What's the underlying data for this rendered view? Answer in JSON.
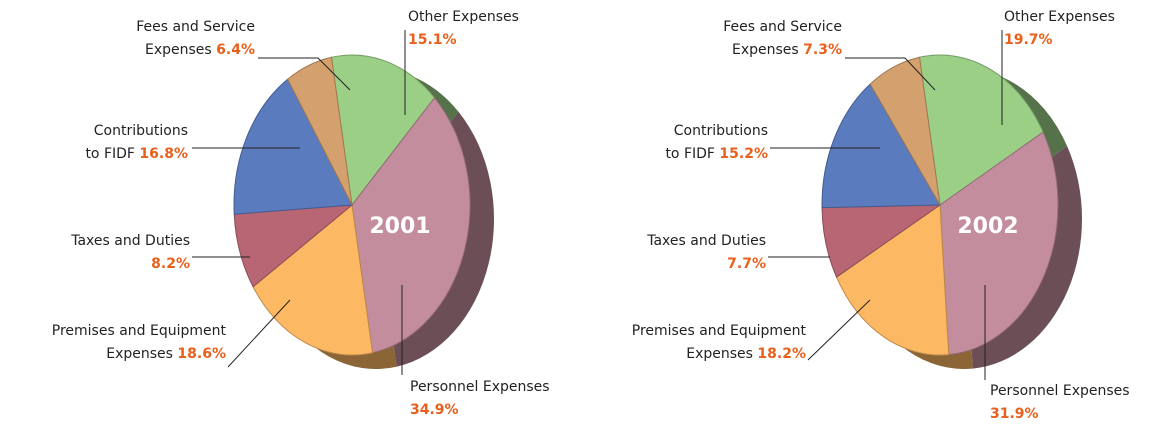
{
  "chart_data": [
    {
      "type": "pie",
      "title": "2001",
      "categories": [
        "Other Expenses",
        "Personnel Expenses",
        "Premises and Equipment Expenses",
        "Taxes and Duties",
        "Contributions to FIDF",
        "Fees and Service Expenses"
      ],
      "values": [
        15.1,
        34.9,
        18.6,
        8.2,
        16.8,
        6.4
      ],
      "value_labels": [
        "15.1%",
        "34.9%",
        "18.6%",
        "8.2%",
        "16.8%",
        "6.4%"
      ],
      "colors": [
        "#9ccf86",
        "#c48d9d",
        "#fdb863",
        "#b86674",
        "#5b7bbf",
        "#d4a06e"
      ]
    },
    {
      "type": "pie",
      "title": "2002",
      "categories": [
        "Other Expenses",
        "Personnel Expenses",
        "Premises and Equipment Expenses",
        "Taxes and Duties",
        "Contributions to FIDF",
        "Fees and Service Expenses"
      ],
      "values": [
        19.7,
        31.9,
        18.2,
        7.7,
        15.2,
        7.3
      ],
      "value_labels": [
        "19.7%",
        "31.9%",
        "18.2%",
        "7.7%",
        "15.2%",
        "7.3%"
      ],
      "colors": [
        "#9ccf86",
        "#c48d9d",
        "#fdb863",
        "#b86674",
        "#5b7bbf",
        "#d4a06e"
      ]
    }
  ]
}
